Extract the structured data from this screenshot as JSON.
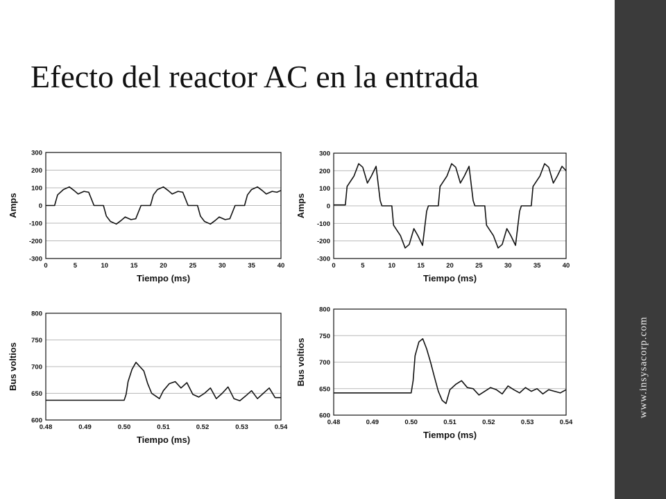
{
  "slide": {
    "title": "Efecto del reactor AC en la entrada",
    "sidebar_text": "www.insysacorp.com",
    "sidebar_color": "#3b3b3b"
  },
  "chart_data": [
    {
      "type": "line",
      "xlabel": "Tiempo (ms)",
      "ylabel": "Amps",
      "xlim": [
        0,
        40
      ],
      "ylim": [
        -300,
        300
      ],
      "xticks": [
        "0",
        "5",
        "10",
        "15",
        "20",
        "25",
        "30",
        "35",
        "40"
      ],
      "yticks": [
        "300",
        "200",
        "100",
        "0",
        "-100",
        "-200",
        "-300"
      ],
      "grid": true,
      "series": [
        {
          "x": [
            0,
            1.5,
            2,
            3,
            4,
            4.8,
            5.5,
            6.5,
            7.3,
            8.2,
            9.8,
            10.3,
            11,
            12,
            12.8,
            13.5,
            14.5,
            15.3,
            16.2,
            17.8,
            18.3,
            19,
            20,
            20.8,
            21.5,
            22.5,
            23.3,
            24.2,
            25.8,
            26.3,
            27,
            28,
            28.8,
            29.5,
            30.5,
            31.3,
            32.2,
            33.8,
            34.3,
            35,
            36,
            36.8,
            37.5,
            38.5,
            39.3,
            40
          ],
          "y": [
            0,
            0,
            60,
            90,
            105,
            85,
            65,
            80,
            75,
            0,
            0,
            -60,
            -90,
            -105,
            -85,
            -65,
            -80,
            -75,
            0,
            0,
            60,
            90,
            105,
            85,
            65,
            80,
            75,
            0,
            0,
            -60,
            -90,
            -105,
            -85,
            -65,
            -80,
            -75,
            0,
            0,
            60,
            90,
            105,
            85,
            65,
            80,
            75,
            85
          ]
        }
      ]
    },
    {
      "type": "line",
      "xlabel": "Tiempo (ms)",
      "ylabel": "Amps",
      "xlim": [
        0,
        40
      ],
      "ylim": [
        -300,
        300
      ],
      "xticks": [
        "0",
        "5",
        "10",
        "15",
        "20",
        "25",
        "30",
        "35",
        "40"
      ],
      "yticks": [
        "300",
        "200",
        "100",
        "0",
        "-100",
        "-200",
        "-300"
      ],
      "grid": true,
      "series": [
        {
          "x": [
            0,
            2,
            2.3,
            3.5,
            4.3,
            5,
            5.8,
            6.5,
            7.3,
            8,
            8.3,
            10,
            10.3,
            11.5,
            12.3,
            13,
            13.8,
            14.5,
            15.3,
            16,
            16.3,
            18,
            18.3,
            19.5,
            20.3,
            21,
            21.8,
            22.5,
            23.3,
            24,
            24.3,
            26,
            26.3,
            27.5,
            28.3,
            29,
            29.8,
            30.5,
            31.3,
            32,
            32.3,
            34,
            34.3,
            35.5,
            36.3,
            37,
            37.8,
            38.5,
            39.3,
            40
          ],
          "y": [
            5,
            5,
            110,
            170,
            240,
            220,
            130,
            170,
            225,
            30,
            0,
            0,
            -110,
            -170,
            -240,
            -220,
            -130,
            -170,
            -225,
            -30,
            0,
            0,
            110,
            170,
            240,
            220,
            130,
            170,
            225,
            30,
            0,
            0,
            -110,
            -170,
            -240,
            -220,
            -130,
            -170,
            -225,
            -30,
            0,
            0,
            110,
            170,
            240,
            220,
            130,
            170,
            225,
            200
          ]
        }
      ]
    },
    {
      "type": "line",
      "xlabel": "Tiempo (ms)",
      "ylabel": "Bus voltios",
      "xlim": [
        0.48,
        0.54
      ],
      "ylim": [
        600,
        800
      ],
      "xticks": [
        "0.48",
        "0.49",
        "0.50",
        "0.51",
        "0.52",
        "0.53",
        "0.54"
      ],
      "yticks": [
        "800",
        "750",
        "700",
        "650",
        "600"
      ],
      "grid": true,
      "series": [
        {
          "x": [
            0.48,
            0.5,
            0.5005,
            0.501,
            0.502,
            0.503,
            0.504,
            0.505,
            0.506,
            0.507,
            0.508,
            0.509,
            0.51,
            0.5115,
            0.513,
            0.5145,
            0.516,
            0.5175,
            0.519,
            0.5205,
            0.522,
            0.5235,
            0.525,
            0.5265,
            0.528,
            0.5295,
            0.531,
            0.5325,
            0.534,
            0.5355,
            0.537,
            0.5385,
            0.54
          ],
          "y": [
            637,
            637,
            648,
            672,
            695,
            708,
            700,
            692,
            668,
            650,
            645,
            640,
            655,
            668,
            672,
            660,
            670,
            648,
            643,
            650,
            660,
            640,
            650,
            662,
            640,
            636,
            645,
            655,
            640,
            650,
            660,
            642,
            642
          ]
        }
      ]
    },
    {
      "type": "line",
      "xlabel": "Tiempo (ms)",
      "ylabel": "Bus voltios",
      "xlim": [
        0.48,
        0.54
      ],
      "ylim": [
        600,
        800
      ],
      "xticks": [
        "0.48",
        "0.49",
        "0.50",
        "0.51",
        "0.52",
        "0.53",
        "0.54"
      ],
      "yticks": [
        "800",
        "750",
        "700",
        "650",
        "600"
      ],
      "grid": true,
      "series": [
        {
          "x": [
            0.48,
            0.5,
            0.5005,
            0.501,
            0.502,
            0.503,
            0.504,
            0.505,
            0.506,
            0.507,
            0.508,
            0.509,
            0.51,
            0.5115,
            0.513,
            0.5145,
            0.516,
            0.5175,
            0.519,
            0.5205,
            0.522,
            0.5235,
            0.525,
            0.5265,
            0.528,
            0.5295,
            0.531,
            0.5325,
            0.534,
            0.5355,
            0.537,
            0.5385,
            0.54
          ],
          "y": [
            642,
            642,
            665,
            712,
            738,
            744,
            725,
            700,
            672,
            645,
            628,
            622,
            648,
            658,
            665,
            652,
            650,
            638,
            645,
            652,
            648,
            640,
            655,
            648,
            642,
            652,
            645,
            650,
            640,
            648,
            645,
            642,
            648
          ]
        }
      ]
    }
  ]
}
